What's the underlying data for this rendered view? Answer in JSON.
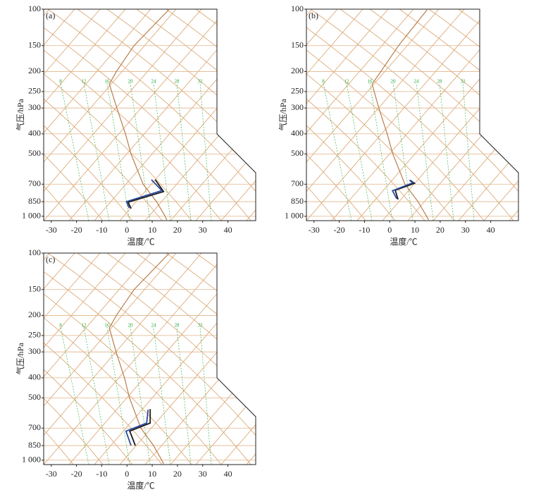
{
  "chart_data": [
    {
      "type": "skewt",
      "panel_label": "(a)",
      "xlabel": "温度/℃",
      "ylabel": "气压/hPa",
      "xlim": [
        -33,
        51
      ],
      "ylim": [
        100,
        1050
      ],
      "log_y": true,
      "xticks": [
        -30,
        -20,
        -10,
        0,
        10,
        20,
        30,
        40
      ],
      "yticks": [
        100,
        150,
        200,
        250,
        300,
        400,
        500,
        700,
        850,
        {
          "value": 1000,
          "label": "1 000"
        }
      ],
      "mixing_ratio_labels": [
        8,
        12,
        16,
        20,
        24,
        28,
        32
      ],
      "series": [
        {
          "color": "#b97d4b",
          "x": [
            15.9,
            15.1,
            11.7,
            6.4,
            1.6,
            -0.6,
            -4,
            -7,
            -4.2,
            2.8,
            16.8
          ],
          "y": [
            1050,
            1000,
            850,
            700,
            500,
            400,
            300,
            230,
            200,
            150,
            100
          ]
        },
        {
          "color": "#1a1a1a",
          "x": [
            1.6,
            0.5,
            14.5,
            11.2
          ],
          "y": [
            918,
            855,
            760,
            666
          ]
        },
        {
          "color": "#2b4aa0",
          "x": [
            0.9,
            -0.2,
            13.8,
            9.7
          ],
          "y": [
            912,
            850,
            752,
            666
          ]
        }
      ]
    },
    {
      "type": "skewt",
      "panel_label": "(b)",
      "xlabel": "温度/℃",
      "ylabel": "气压/hPa",
      "xlim": [
        -33,
        51
      ],
      "ylim": [
        100,
        1050
      ],
      "log_y": true,
      "xticks": [
        -30,
        -20,
        -10,
        0,
        10,
        20,
        30,
        40
      ],
      "yticks": [
        100,
        150,
        200,
        250,
        300,
        400,
        500,
        700,
        850,
        {
          "value": 1000,
          "label": "1 000"
        }
      ],
      "mixing_ratio_labels": [
        8,
        12,
        16,
        20,
        24,
        28,
        32
      ],
      "series": [
        {
          "color": "#b97d4b",
          "x": [
            15.4,
            14.6,
            11.2,
            6,
            1.2,
            -1,
            -4.3,
            -7,
            -3.5,
            3.5,
            15
          ],
          "y": [
            1040,
            1000,
            850,
            700,
            500,
            400,
            300,
            230,
            200,
            150,
            100
          ]
        },
        {
          "color": "#1a1a1a",
          "x": [
            3.3,
            2.2,
            9.8,
            8.1
          ],
          "y": [
            830,
            749,
            693,
            670
          ]
        },
        {
          "color": "#2b4aa0",
          "x": [
            2.8,
            1.1,
            9.2,
            7.8
          ],
          "y": [
            824,
            753,
            689,
            670
          ]
        }
      ]
    },
    {
      "type": "skewt",
      "panel_label": "(c)",
      "xlabel": "温度/℃",
      "ylabel": "气压/hPa",
      "xlim": [
        -33,
        51
      ],
      "ylim": [
        100,
        1050
      ],
      "log_y": true,
      "xticks": [
        -30,
        -20,
        -10,
        0,
        10,
        20,
        30,
        40
      ],
      "yticks": [
        100,
        150,
        200,
        250,
        300,
        400,
        500,
        700,
        850,
        {
          "value": 1000,
          "label": "1 000"
        }
      ],
      "mixing_ratio_labels": [
        8,
        12,
        16,
        20,
        24,
        28,
        32
      ],
      "series": [
        {
          "color": "#b97d4b",
          "x": [
            14.5,
            13.8,
            10.5,
            5.5,
            1,
            -1,
            -4.3,
            -7,
            -4.2,
            2.8,
            16.8
          ],
          "y": [
            1040,
            1000,
            850,
            700,
            500,
            400,
            300,
            230,
            200,
            150,
            100
          ]
        },
        {
          "color": "#1a1a1a",
          "x": [
            3.3,
            1.1,
            9.2,
            9.2
          ],
          "y": [
            850,
            724,
            662,
            566
          ]
        },
        {
          "color": "#2b4aa0",
          "x": [
            1.6,
            -0.4,
            7.8,
            8.4
          ],
          "y": [
            850,
            724,
            662,
            570
          ]
        }
      ]
    }
  ]
}
